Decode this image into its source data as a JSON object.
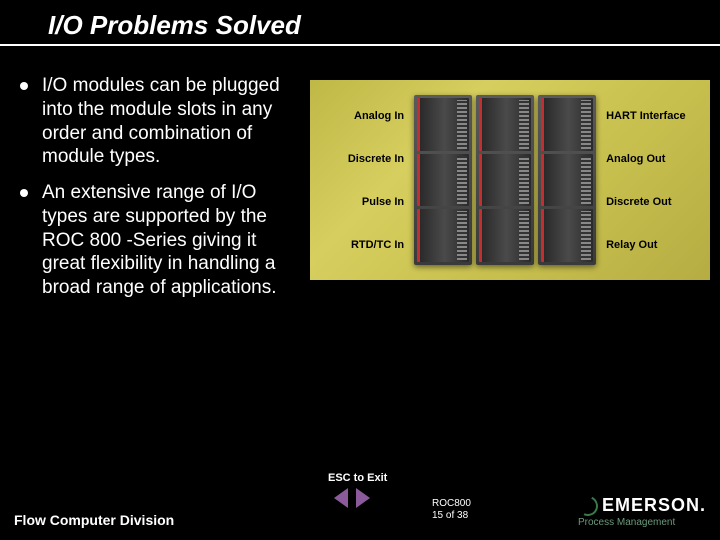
{
  "title": "I/O Problems Solved",
  "bullets": [
    "I/O modules can be plugged into the module slots in any order and combination of module types.",
    "An extensive range of I/O types are supported by the ROC 800 -Series giving it great flexibility in handling a broad range of applications."
  ],
  "diagram": {
    "background_gradient": [
      "#bfb847",
      "#d6ce5e",
      "#c9c14f",
      "#b5ad42"
    ],
    "left_labels": [
      "Analog In",
      "Discrete In",
      "Pulse In",
      "RTD/TC In"
    ],
    "right_labels": [
      "HART Interface",
      "Analog Out",
      "Discrete Out",
      "Relay Out"
    ],
    "module_columns": 3,
    "slots_per_column": 3,
    "label_fontsize": 11,
    "label_color": "#000000",
    "module_accent_color": "#c03030"
  },
  "nav": {
    "esc_label": "ESC to Exit",
    "arrow_color": "#8a5a9a"
  },
  "footer": {
    "left": "Flow Computer Division",
    "center_line1": "ROC800",
    "center_line2": "15 of 38",
    "logo_main": "EMERSON.",
    "logo_sub": "Process Management",
    "logo_color": "#ffffff",
    "logo_sub_color": "#6a9a7a"
  },
  "colors": {
    "background": "#000000",
    "text": "#ffffff",
    "title_underline": "#ffffff"
  },
  "typography": {
    "title_fontsize": 26,
    "bullet_fontsize": 19,
    "footer_fontsize": 14
  }
}
